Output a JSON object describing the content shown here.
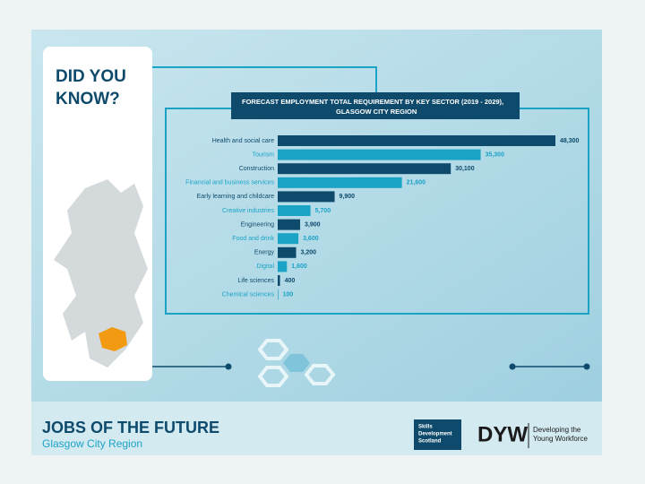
{
  "header": {
    "title": "DID YOU KNOW?"
  },
  "chart_data": {
    "type": "bar",
    "orientation": "horizontal",
    "title": "FORECAST EMPLOYMENT TOTAL REQUIREMENT BY KEY SECTOR (2019 - 2029),",
    "subtitle": "GLASGOW CITY REGION",
    "categories": [
      "Health and social care",
      "Tourism",
      "Construction",
      "Financial and business services",
      "Early learning and childcare",
      "Creative industries",
      "Engineering",
      "Food and drink",
      "Energy",
      "Digital",
      "Life sciences",
      "Chemical sciences"
    ],
    "values": [
      48300,
      35300,
      30100,
      21600,
      9900,
      5700,
      3900,
      3600,
      3200,
      1600,
      400,
      100
    ],
    "value_labels": [
      "48,300",
      "35,300",
      "30,100",
      "21,600",
      "9,900",
      "5,700",
      "3,900",
      "3,600",
      "3,200",
      "1,600",
      "400",
      "100"
    ],
    "colors": [
      "#0e4a6c",
      "#1ba3c6",
      "#0e4a6c",
      "#1ba3c6",
      "#0e4a6c",
      "#1ba3c6",
      "#0e4a6c",
      "#1ba3c6",
      "#0e4a6c",
      "#1ba3c6",
      "#0e4a6c",
      "#1ba3c6"
    ]
  },
  "footer": {
    "title": "JOBS OF THE FUTURE",
    "subtitle": "Glasgow City Region",
    "logo_sds": [
      "Skills",
      "Development",
      "Scotland"
    ],
    "logo_dyw": "DYW",
    "logo_dyw_text": [
      "Developing the",
      "Young Workforce"
    ]
  }
}
